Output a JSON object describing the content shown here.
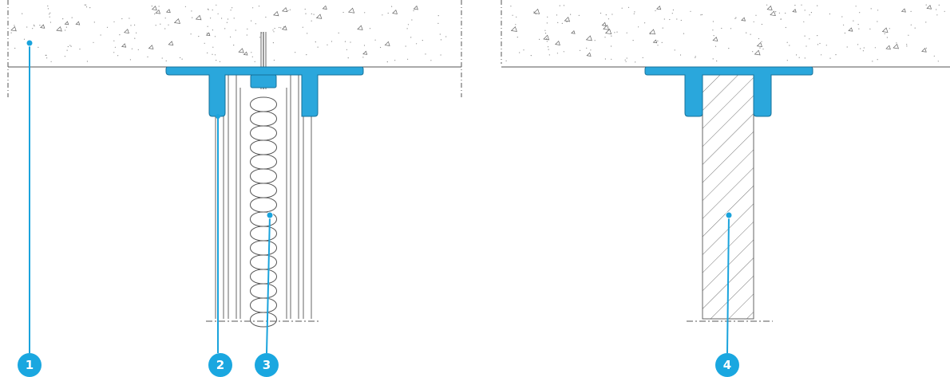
{
  "markers": [
    {
      "label": "1"
    },
    {
      "label": "2"
    },
    {
      "label": "3"
    },
    {
      "label": "4"
    }
  ]
}
